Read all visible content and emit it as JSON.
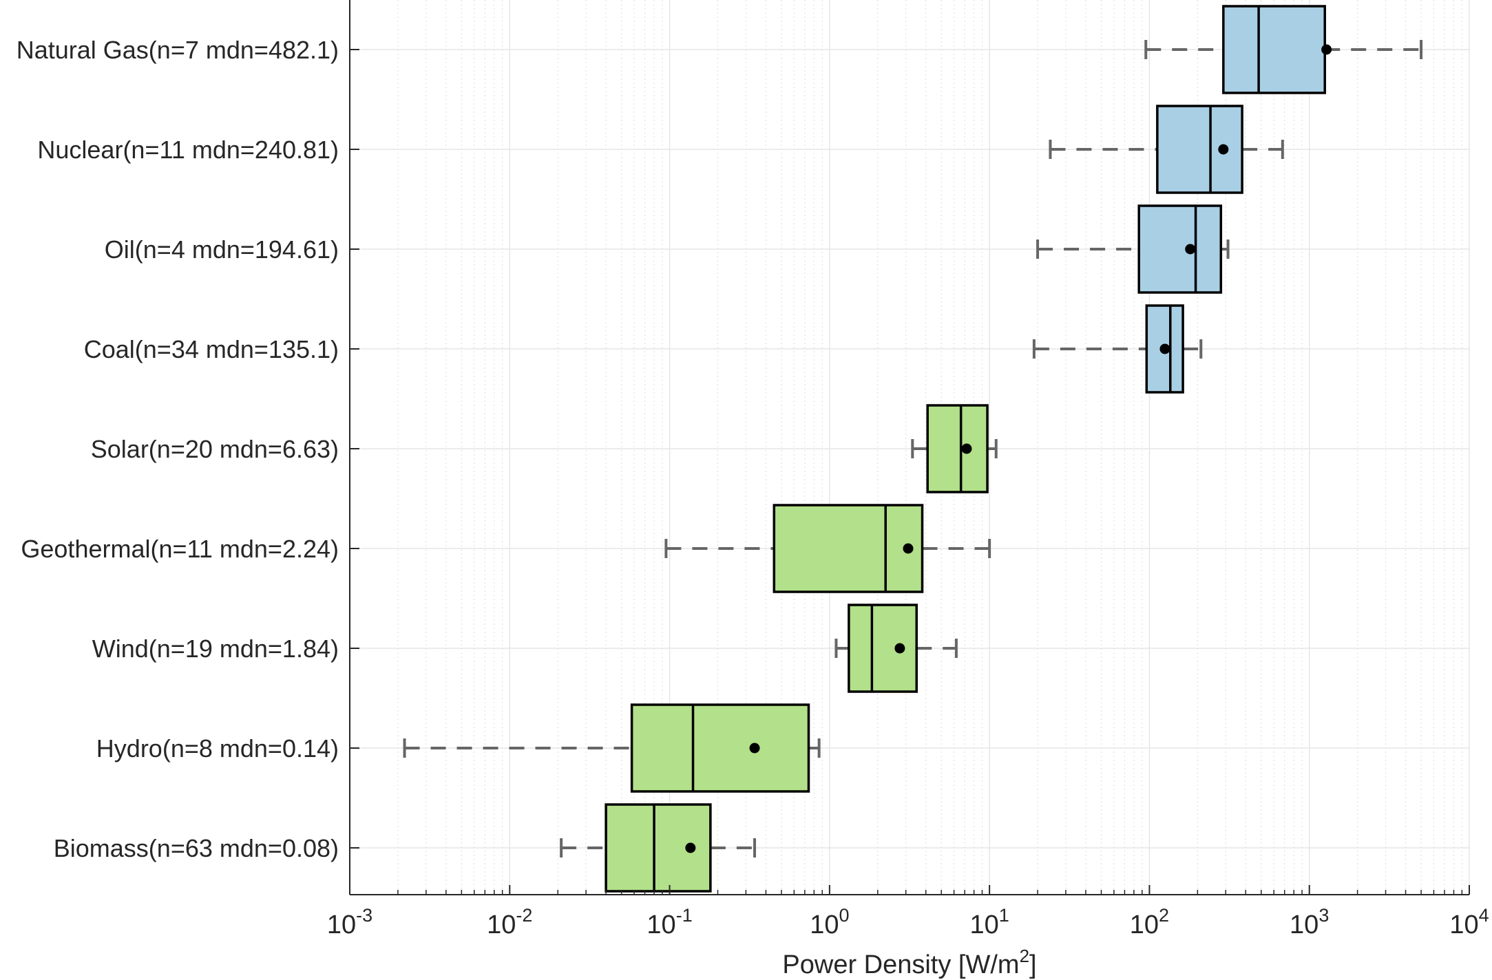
{
  "chart_data": {
    "type": "boxplot",
    "orientation": "horizontal",
    "xscale": "log",
    "xlim": [
      0.001,
      10000
    ],
    "xlabel": {
      "main": "Power Density [W/m",
      "sup": "2",
      "end": "]"
    },
    "xticks": [
      {
        "base": "10",
        "exp": "-3",
        "value": 0.001
      },
      {
        "base": "10",
        "exp": "-2",
        "value": 0.01
      },
      {
        "base": "10",
        "exp": "-1",
        "value": 0.1
      },
      {
        "base": "10",
        "exp": "0",
        "value": 1
      },
      {
        "base": "10",
        "exp": "1",
        "value": 10
      },
      {
        "base": "10",
        "exp": "2",
        "value": 100
      },
      {
        "base": "10",
        "exp": "3",
        "value": 1000
      },
      {
        "base": "10",
        "exp": "4",
        "value": 10000
      }
    ],
    "grid": true,
    "colors": {
      "non_renewable": "#a9cfe5",
      "renewable": "#b3e08a",
      "whisker": "#666666",
      "box_edge": "#000000"
    },
    "categories": [
      {
        "label": "Natural Gas(n=7 mdn=482.1)",
        "group": "non_renewable",
        "whisker_low": 95,
        "q1": 290,
        "median": 482.1,
        "q3": 1250,
        "whisker_high": 5000,
        "mean": 1280
      },
      {
        "label": "Nuclear(n=11 mdn=240.81)",
        "group": "non_renewable",
        "whisker_low": 24,
        "q1": 112,
        "median": 240.81,
        "q3": 380,
        "whisker_high": 680,
        "mean": 290
      },
      {
        "label": "Oil(n=4 mdn=194.61)",
        "group": "non_renewable",
        "whisker_low": 20,
        "q1": 86,
        "median": 194.61,
        "q3": 280,
        "whisker_high": 310,
        "mean": 180
      },
      {
        "label": "Coal(n=34 mdn=135.1)",
        "group": "non_renewable",
        "whisker_low": 19,
        "q1": 96,
        "median": 135.1,
        "q3": 162,
        "whisker_high": 210,
        "mean": 125
      },
      {
        "label": "Solar(n=20 mdn=6.63)",
        "group": "renewable",
        "whisker_low": 3.3,
        "q1": 4.1,
        "median": 6.63,
        "q3": 9.7,
        "whisker_high": 11,
        "mean": 7.2
      },
      {
        "label": "Geothermal(n=11 mdn=2.24)",
        "group": "renewable",
        "whisker_low": 0.095,
        "q1": 0.45,
        "median": 2.24,
        "q3": 3.8,
        "whisker_high": 10,
        "mean": 3.1
      },
      {
        "label": "Wind(n=19 mdn=1.84)",
        "group": "renewable",
        "whisker_low": 1.1,
        "q1": 1.32,
        "median": 1.84,
        "q3": 3.5,
        "whisker_high": 6.2,
        "mean": 2.75
      },
      {
        "label": "Hydro(n=8 mdn=0.14)",
        "group": "renewable",
        "whisker_low": 0.0022,
        "q1": 0.058,
        "median": 0.14,
        "q3": 0.74,
        "whisker_high": 0.86,
        "mean": 0.34
      },
      {
        "label": "Biomass(n=63 mdn=0.08)",
        "group": "renewable",
        "whisker_low": 0.021,
        "q1": 0.04,
        "median": 0.08,
        "q3": 0.18,
        "whisker_high": 0.34,
        "mean": 0.135
      }
    ]
  }
}
